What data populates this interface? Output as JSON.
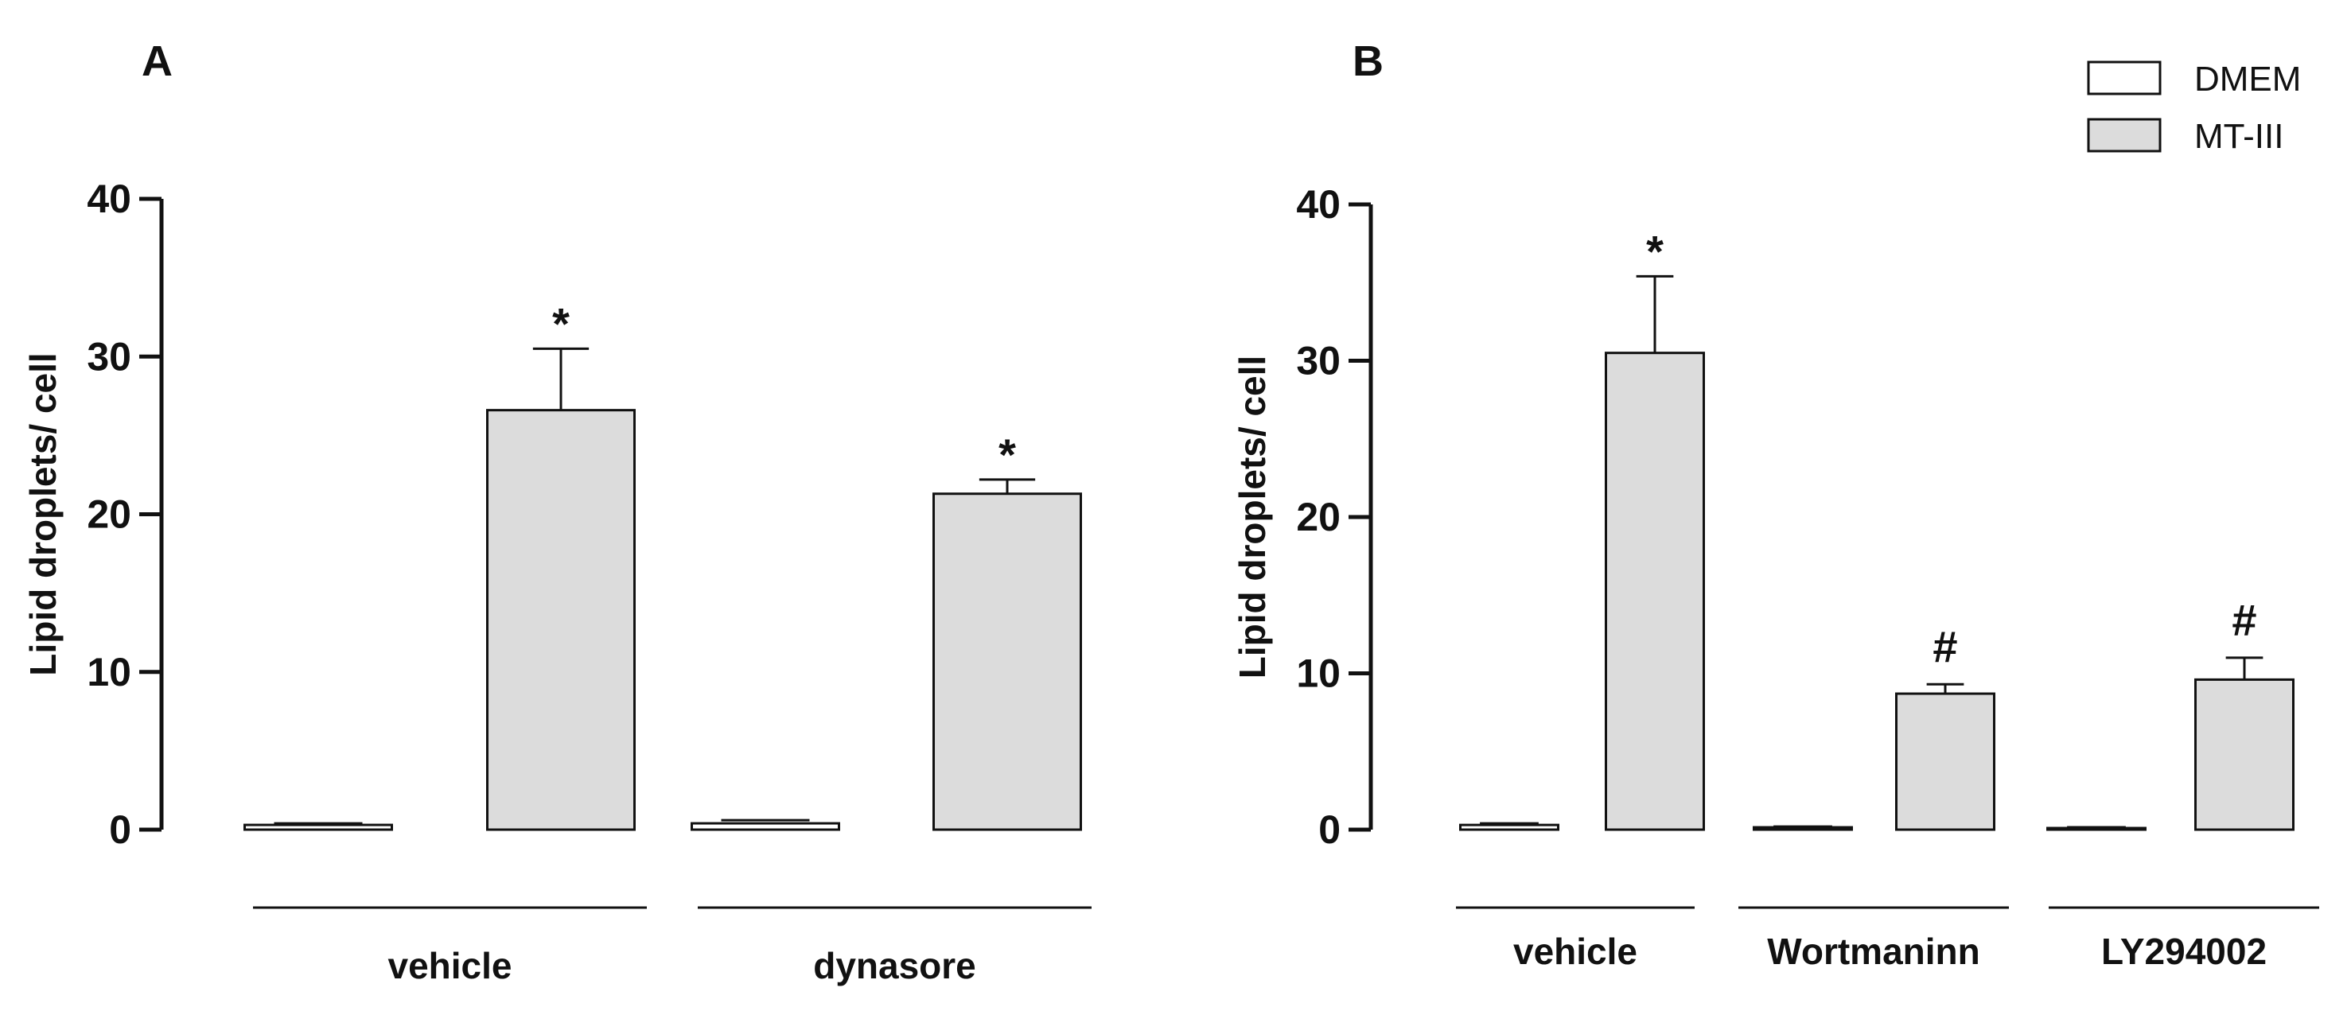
{
  "legend": {
    "entries": [
      {
        "label": "DMEM",
        "color": "#ffffff"
      },
      {
        "label": "MT-III",
        "color": "#dcdcdc"
      }
    ]
  },
  "chart_data": [
    {
      "type": "bar",
      "panel": "A",
      "title": "",
      "xlabel": "",
      "ylabel": "Lipid droplets/ cell",
      "ylim": [
        0,
        40
      ],
      "yticks": [
        "0",
        "10",
        "20",
        "30",
        "40"
      ],
      "categories": [
        "vehicle",
        "dynasore"
      ],
      "series": [
        {
          "name": "DMEM",
          "color": "#ffffff",
          "values": [
            0.3,
            0.4
          ],
          "errors": [
            0.1,
            0.2
          ],
          "annotations": [
            "",
            ""
          ]
        },
        {
          "name": "MT-III",
          "color": "#dcdcdc",
          "values": [
            26.6,
            21.3
          ],
          "errors": [
            3.9,
            0.9
          ],
          "annotations": [
            "*",
            "*"
          ]
        }
      ]
    },
    {
      "type": "bar",
      "panel": "B",
      "title": "",
      "xlabel": "",
      "ylabel": "Lipid droplets/ cell",
      "ylim": [
        0,
        40
      ],
      "yticks": [
        "0",
        "10",
        "20",
        "30",
        "40"
      ],
      "categories": [
        "vehicle",
        "Wortmaninn",
        "LY294002"
      ],
      "series": [
        {
          "name": "DMEM",
          "color": "#ffffff",
          "values": [
            0.3,
            0.15,
            0.1
          ],
          "errors": [
            0.1,
            0.05,
            0.05
          ],
          "annotations": [
            "",
            "",
            ""
          ]
        },
        {
          "name": "MT-III",
          "color": "#dcdcdc",
          "values": [
            30.5,
            8.7,
            9.6
          ],
          "errors": [
            4.9,
            0.6,
            1.4
          ],
          "annotations": [
            "*",
            "#",
            "#"
          ]
        }
      ]
    }
  ]
}
